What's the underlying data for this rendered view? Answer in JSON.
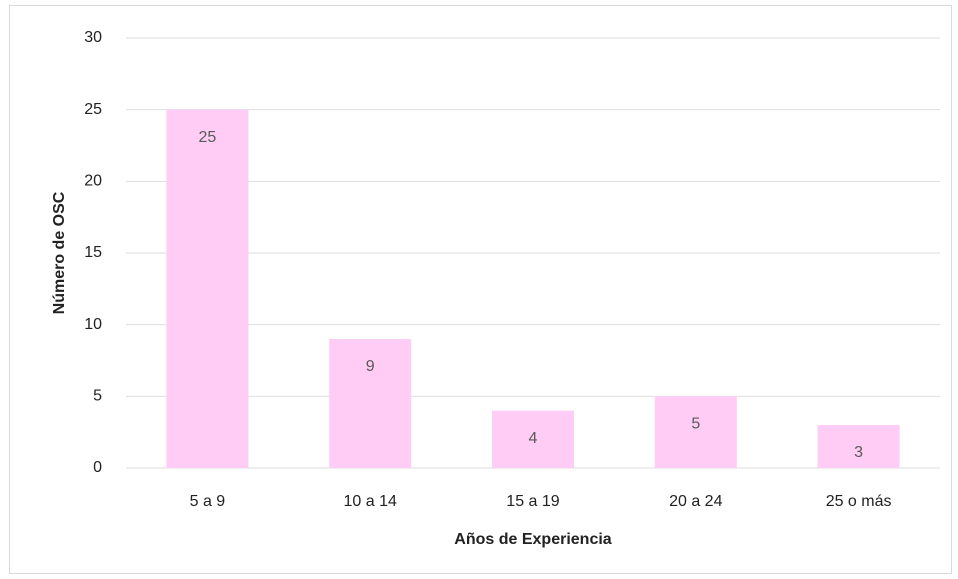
{
  "chart_data": {
    "type": "bar",
    "categories": [
      "5 a 9",
      "10 a 14",
      "15 a 19",
      "20 a 24",
      "25 o más"
    ],
    "values": [
      25,
      9,
      4,
      5,
      3
    ],
    "color": "#ffccf5",
    "xlabel": "Años de Experiencia",
    "ylabel": "Número de OSC",
    "ylim": [
      0,
      30
    ],
    "yticks": [
      0,
      5,
      10,
      15,
      20,
      25,
      30
    ],
    "grid": true,
    "data_labels": true
  }
}
